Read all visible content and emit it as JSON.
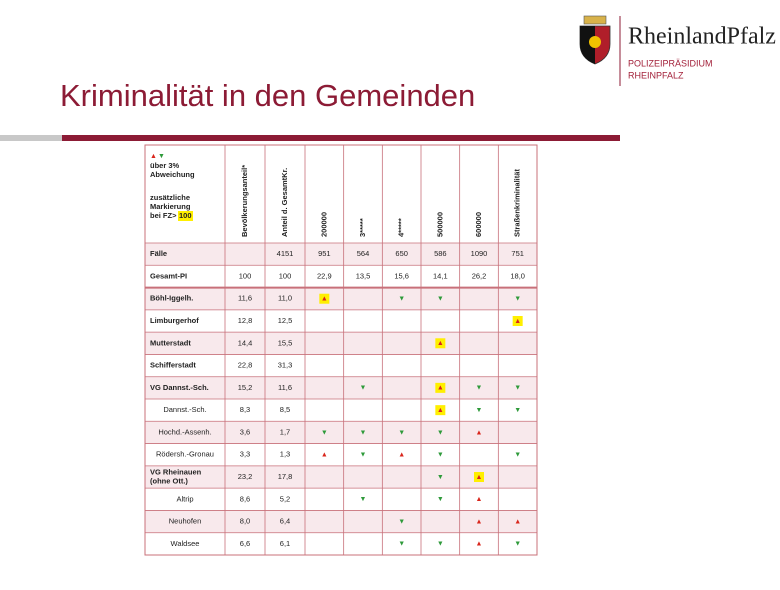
{
  "header": {
    "title": "Kriminalität in den Gemeinden",
    "logo_name": "RheinlandPfalz",
    "logo_lines": [
      "POLIZEIPRÄSIDIUM",
      "RHEINPFALZ"
    ]
  },
  "table": {
    "legend": {
      "up": {
        "symbol": "▲",
        "color": "#d9261c"
      },
      "down": {
        "symbol": "▼",
        "color": "#2e9a3a"
      },
      "lines": [
        "über 3%",
        "Abweichung"
      ],
      "note": [
        "zusätzliche",
        "Markierung",
        "bei FZ>"
      ],
      "note_highlight": "100"
    },
    "columns": [
      "Bevölkerungsanteil*",
      "Anteil d. GesamtKr.",
      "200000",
      "3*****",
      "4*****",
      "500000",
      "600000",
      "Straßenkriminalität"
    ],
    "rows": [
      {
        "label": "Fälle",
        "bold": true,
        "cells": [
          null,
          "4151",
          "951",
          "564",
          "650",
          "586",
          "1090",
          "751"
        ]
      },
      {
        "label": "Gesamt-PI",
        "bold": true,
        "cells": [
          "100",
          "100",
          "22,9",
          "13,5",
          "15,6",
          "14,1",
          "26,2",
          "18,0"
        ]
      },
      {
        "label": "Böhl-Iggelh.",
        "bold": true,
        "cells": [
          "11,6",
          "11,0",
          {
            "symbol": "▲",
            "color": "#d9261c",
            "highlight": true
          },
          null,
          {
            "symbol": "▼",
            "color": "#2e9a3a"
          },
          {
            "symbol": "▼",
            "color": "#2e9a3a"
          },
          null,
          {
            "symbol": "▼",
            "color": "#2e9a3a"
          }
        ]
      },
      {
        "label": "Limburgerhof",
        "bold": true,
        "cells": [
          "12,8",
          "12,5",
          null,
          null,
          null,
          null,
          null,
          {
            "symbol": "▲",
            "color": "#d9261c",
            "highlight": true
          }
        ]
      },
      {
        "label": "Mutterstadt",
        "bold": true,
        "cells": [
          "14,4",
          "15,5",
          null,
          null,
          null,
          {
            "symbol": "▲",
            "color": "#d9261c",
            "highlight": true
          },
          null,
          null
        ]
      },
      {
        "label": "Schifferstadt",
        "bold": true,
        "cells": [
          "22,8",
          "31,3",
          null,
          null,
          null,
          null,
          null,
          null
        ]
      },
      {
        "label": "VG Dannst.-Sch.",
        "bold": true,
        "cells": [
          "15,2",
          "11,6",
          null,
          {
            "symbol": "▼",
            "color": "#2e9a3a"
          },
          null,
          {
            "symbol": "▲",
            "color": "#d9261c",
            "highlight": true
          },
          {
            "symbol": "▼",
            "color": "#2e9a3a"
          },
          {
            "symbol": "▼",
            "color": "#2e9a3a"
          }
        ]
      },
      {
        "label": "Dannst.-Sch.",
        "sub": true,
        "cells": [
          "8,3",
          "8,5",
          null,
          null,
          null,
          {
            "symbol": "▲",
            "color": "#d9261c",
            "highlight": true
          },
          {
            "symbol": "▼",
            "color": "#2e9a3a"
          },
          {
            "symbol": "▼",
            "color": "#2e9a3a"
          }
        ]
      },
      {
        "label": "Hochd.-Assenh.",
        "sub": true,
        "cells": [
          "3,6",
          "1,7",
          {
            "symbol": "▼",
            "color": "#2e9a3a"
          },
          {
            "symbol": "▼",
            "color": "#2e9a3a"
          },
          {
            "symbol": "▼",
            "color": "#2e9a3a"
          },
          {
            "symbol": "▼",
            "color": "#2e9a3a"
          },
          {
            "symbol": "▲",
            "color": "#d9261c"
          },
          null
        ]
      },
      {
        "label": "Rödersh.-Gronau",
        "sub": true,
        "cells": [
          "3,3",
          "1,3",
          {
            "symbol": "▲",
            "color": "#d9261c"
          },
          {
            "symbol": "▼",
            "color": "#2e9a3a"
          },
          {
            "symbol": "▲",
            "color": "#d9261c"
          },
          {
            "symbol": "▼",
            "color": "#2e9a3a"
          },
          null,
          {
            "symbol": "▼",
            "color": "#2e9a3a"
          }
        ]
      },
      {
        "label": [
          "VG Rheinauen",
          "(ohne Ott.)"
        ],
        "bold": true,
        "cells": [
          "23,2",
          "17,8",
          null,
          null,
          null,
          {
            "symbol": "▼",
            "color": "#2e9a3a"
          },
          {
            "symbol": "▲",
            "color": "#d9261c",
            "highlight": true
          },
          null
        ]
      },
      {
        "label": "Altrip",
        "sub": true,
        "cells": [
          "8,6",
          "5,2",
          null,
          {
            "symbol": "▼",
            "color": "#2e9a3a"
          },
          null,
          {
            "symbol": "▼",
            "color": "#2e9a3a"
          },
          {
            "symbol": "▲",
            "color": "#d9261c"
          },
          null
        ]
      },
      {
        "label": "Neuhofen",
        "sub": true,
        "cells": [
          "8,0",
          "6,4",
          null,
          null,
          {
            "symbol": "▼",
            "color": "#2e9a3a"
          },
          null,
          {
            "symbol": "▲",
            "color": "#d9261c"
          },
          {
            "symbol": "▲",
            "color": "#d9261c"
          }
        ]
      },
      {
        "label": "Waldsee",
        "sub": true,
        "cells": [
          "6,6",
          "6,1",
          null,
          null,
          {
            "symbol": "▼",
            "color": "#2e9a3a"
          },
          {
            "symbol": "▼",
            "color": "#2e9a3a"
          },
          {
            "symbol": "▲",
            "color": "#d9261c"
          },
          {
            "symbol": "▼",
            "color": "#2e9a3a"
          }
        ]
      }
    ]
  }
}
